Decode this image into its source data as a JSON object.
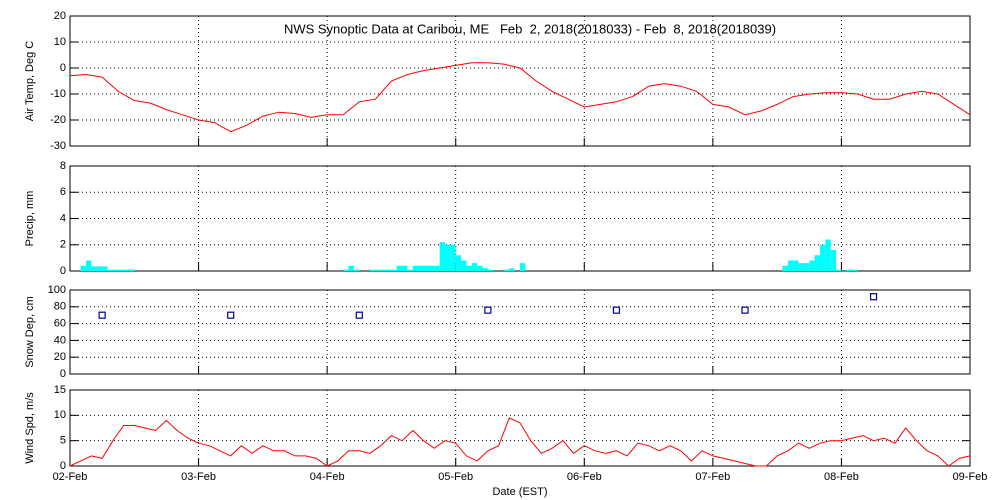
{
  "chart_data": [
    {
      "type": "line",
      "title": "NWS Synoptic Data at Caribou, ME   Feb  2, 2018(2018033) - Feb  8, 2018(2018039)",
      "ylabel": "Air Temp, Deg C",
      "color": "#ff0000",
      "grid": true,
      "xlim": [
        0,
        168
      ],
      "xticks": [
        0,
        24,
        48,
        72,
        96,
        120,
        144,
        168
      ],
      "ylim": [
        -30,
        20
      ],
      "yticks": [
        20,
        10,
        0,
        -10,
        -20,
        -30
      ],
      "x": [
        0,
        3,
        6,
        9,
        12,
        15,
        18,
        21,
        24,
        27,
        30,
        33,
        36,
        39,
        42,
        45,
        48,
        51,
        54,
        57,
        60,
        63,
        66,
        69,
        72,
        75,
        78,
        81,
        84,
        87,
        90,
        93,
        96,
        99,
        102,
        105,
        108,
        111,
        114,
        117,
        120,
        123,
        126,
        129,
        132,
        135,
        138,
        141,
        144,
        147,
        150,
        153,
        156,
        159,
        162,
        165,
        168
      ],
      "values": [
        -3,
        -2.5,
        -3.5,
        -9,
        -12.5,
        -13.5,
        -16,
        -18,
        -20,
        -21,
        -24.5,
        -22,
        -18.5,
        -17,
        -17.5,
        -19,
        -18,
        -18,
        -13,
        -12,
        -5,
        -2.5,
        -1,
        0,
        1,
        2,
        2,
        1.5,
        0,
        -5,
        -9,
        -12,
        -15,
        -14,
        -13,
        -11,
        -7,
        -6,
        -7,
        -9,
        -14,
        -15,
        -18,
        -16.5,
        -14,
        -11,
        -10,
        -9.5,
        -9.5,
        -10,
        -12,
        -12,
        -10,
        -9,
        -10,
        -14,
        -18
      ]
    },
    {
      "type": "bar",
      "ylabel": "Precip, mm",
      "color": "#00ffff",
      "grid": true,
      "xlim": [
        0,
        168
      ],
      "xticks": [
        0,
        24,
        48,
        72,
        96,
        120,
        144,
        168
      ],
      "ylim": [
        0,
        8
      ],
      "yticks": [
        0,
        2,
        4,
        6,
        8
      ],
      "x": [
        2,
        3,
        4,
        5,
        6,
        7,
        8,
        9,
        10,
        11,
        51,
        52,
        53,
        56,
        57,
        58,
        59,
        60,
        61,
        62,
        63,
        64,
        65,
        66,
        67,
        68,
        69,
        70,
        71,
        72,
        73,
        74,
        75,
        76,
        77,
        78,
        81,
        82,
        84,
        133,
        134,
        135,
        136,
        137,
        138,
        139,
        140,
        141,
        142,
        143,
        145,
        146
      ],
      "values": [
        0.4,
        0.8,
        0.35,
        0.35,
        0.35,
        0.1,
        0.1,
        0.1,
        0.1,
        0.1,
        0.1,
        0.4,
        0.1,
        0.1,
        0.1,
        0.1,
        0.1,
        0.1,
        0.4,
        0.4,
        0.1,
        0.4,
        0.4,
        0.4,
        0.4,
        0.4,
        2.2,
        2,
        2,
        1.2,
        0.8,
        0.4,
        0.6,
        0.4,
        0.2,
        0.1,
        0.1,
        0.2,
        0.6,
        0.4,
        0.8,
        0.8,
        0.6,
        0.6,
        0.8,
        1.2,
        2,
        2.4,
        1.6,
        0.1,
        0.1,
        0.1
      ]
    },
    {
      "type": "scatter",
      "ylabel": "Snow Dep, cm",
      "color": "#000099",
      "grid": true,
      "xlim": [
        0,
        168
      ],
      "xticks": [
        0,
        24,
        48,
        72,
        96,
        120,
        144,
        168
      ],
      "ylim": [
        0,
        100
      ],
      "yticks": [
        0,
        20,
        40,
        60,
        80,
        100
      ],
      "x": [
        6,
        30,
        54,
        78,
        102,
        126,
        150
      ],
      "values": [
        70,
        70,
        70,
        76,
        76,
        76,
        92
      ]
    },
    {
      "type": "line",
      "ylabel": "Wind Spd, m/s",
      "xlabel": "Date (EST)",
      "color": "#ff0000",
      "grid": true,
      "xlim": [
        0,
        168
      ],
      "xticks": [
        {
          "value": 0,
          "label": "02-Feb"
        },
        {
          "value": 24,
          "label": "03-Feb"
        },
        {
          "value": 48,
          "label": "04-Feb"
        },
        {
          "value": 72,
          "label": "05-Feb"
        },
        {
          "value": 96,
          "label": "06-Feb"
        },
        {
          "value": 120,
          "label": "07-Feb"
        },
        {
          "value": 144,
          "label": "08-Feb"
        },
        {
          "value": 168,
          "label": "09-Feb"
        }
      ],
      "ylim": [
        0,
        15
      ],
      "yticks": [
        0,
        5,
        10,
        15
      ],
      "x": [
        0,
        2,
        4,
        6,
        8,
        10,
        12,
        14,
        16,
        18,
        20,
        22,
        24,
        26,
        28,
        30,
        32,
        34,
        36,
        38,
        40,
        42,
        44,
        46,
        48,
        50,
        52,
        54,
        56,
        58,
        60,
        62,
        64,
        66,
        68,
        70,
        72,
        74,
        76,
        78,
        80,
        82,
        84,
        86,
        88,
        90,
        92,
        94,
        96,
        98,
        100,
        102,
        104,
        106,
        108,
        110,
        112,
        114,
        116,
        118,
        120,
        122,
        124,
        126,
        128,
        130,
        132,
        134,
        136,
        138,
        140,
        142,
        144,
        146,
        148,
        150,
        152,
        154,
        156,
        158,
        160,
        162,
        164,
        166,
        168
      ],
      "values": [
        0,
        1,
        2,
        1.5,
        5,
        8,
        8,
        7.5,
        7,
        9,
        7,
        5.5,
        4.5,
        4,
        3,
        2,
        4,
        2.5,
        4,
        3,
        3,
        2,
        2,
        1.5,
        0,
        1,
        3,
        3,
        2.5,
        4,
        6,
        5,
        7,
        5,
        3.5,
        5,
        4.5,
        2,
        1,
        3,
        4,
        9.5,
        8.5,
        5,
        2.5,
        3.5,
        5,
        2.5,
        4,
        3,
        2.5,
        3,
        2,
        4.5,
        4,
        3,
        4,
        3,
        1,
        3,
        2,
        1.5,
        1,
        0.5,
        0,
        0,
        2,
        3,
        4.5,
        3.5,
        4.5,
        5,
        5,
        5.5,
        6,
        5,
        5.5,
        4.5,
        7.5,
        5,
        3,
        2,
        0,
        1.5,
        2
      ]
    }
  ]
}
